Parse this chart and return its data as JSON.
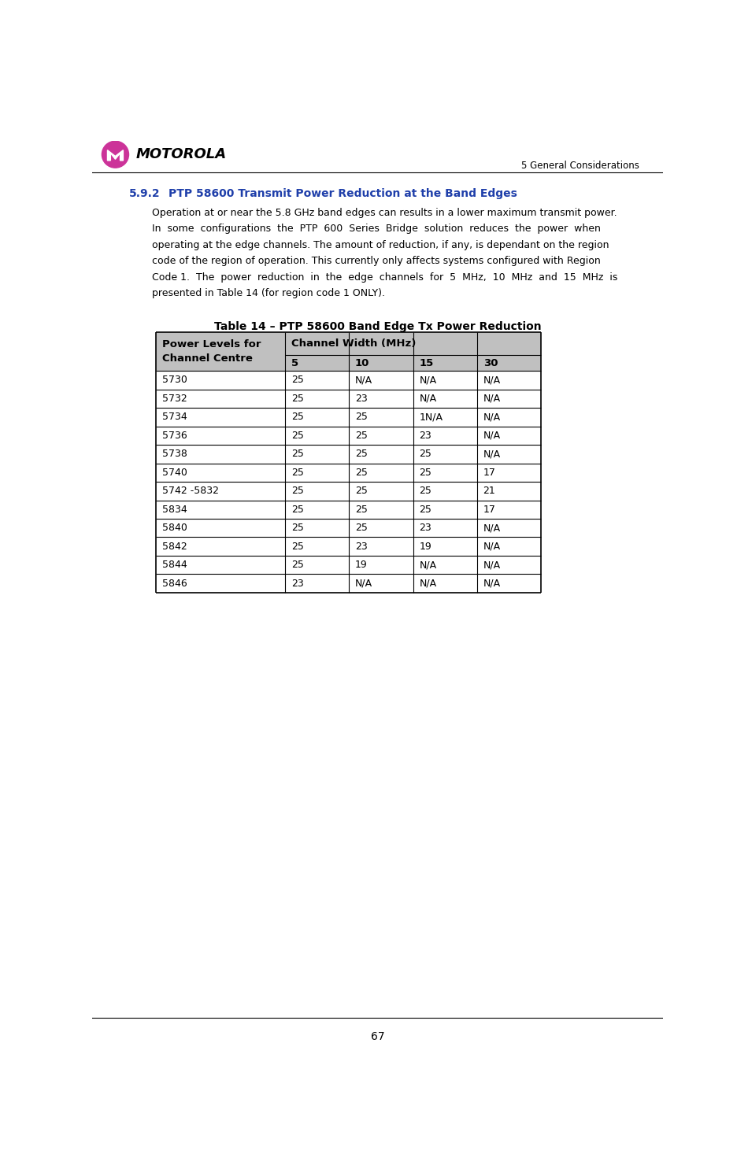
{
  "page_width": 9.36,
  "page_height": 14.94,
  "dpi": 100,
  "header_text": "5 General Considerations",
  "section_number": "5.9.2",
  "section_title": "PTP 58600 Transmit Power Reduction at the Band Edges",
  "section_title_color": "#1F3FAA",
  "body_text_lines": [
    "Operation at or near the 5.8 GHz band edges can results in a lower maximum transmit power.",
    "In  some  configurations  the  PTP  600  Series  Bridge  solution  reduces  the  power  when",
    "operating at the edge channels. The amount of reduction, if any, is dependant on the region",
    "code of the region of operation. This currently only affects systems configured with Region",
    "Code 1.  The  power  reduction  in  the  edge  channels  for  5  MHz,  10  MHz  and  15  MHz  is",
    "presented in Table 14 (for region code 1 ONLY)."
  ],
  "table_title": "Table 14 – PTP 58600 Band Edge Tx Power Reduction",
  "table_header_bg": "#C0C0C0",
  "col_headers_sub": [
    "5",
    "10",
    "15",
    "30"
  ],
  "table_rows": [
    [
      "5730",
      "25",
      "N/A",
      "N/A",
      "N/A"
    ],
    [
      "5732",
      "25",
      "23",
      "N/A",
      "N/A"
    ],
    [
      "5734",
      "25",
      "25",
      "1N/A",
      "N/A"
    ],
    [
      "5736",
      "25",
      "25",
      "23",
      "N/A"
    ],
    [
      "5738",
      "25",
      "25",
      "25",
      "N/A"
    ],
    [
      "5740",
      "25",
      "25",
      "25",
      "17"
    ],
    [
      "5742 -5832",
      "25",
      "25",
      "25",
      "21"
    ],
    [
      "5834",
      "25",
      "25",
      "25",
      "17"
    ],
    [
      "5840",
      "25",
      "25",
      "23",
      "N/A"
    ],
    [
      "5842",
      "25",
      "23",
      "19",
      "N/A"
    ],
    [
      "5844",
      "25",
      "19",
      "N/A",
      "N/A"
    ],
    [
      "5846",
      "23",
      "N/A",
      "N/A",
      "N/A"
    ]
  ],
  "footer_page_number": "67",
  "motorola_text": "MOTOROLA",
  "logo_circle_color": "#CC3399",
  "logo_m_color": "#FFFFFF"
}
